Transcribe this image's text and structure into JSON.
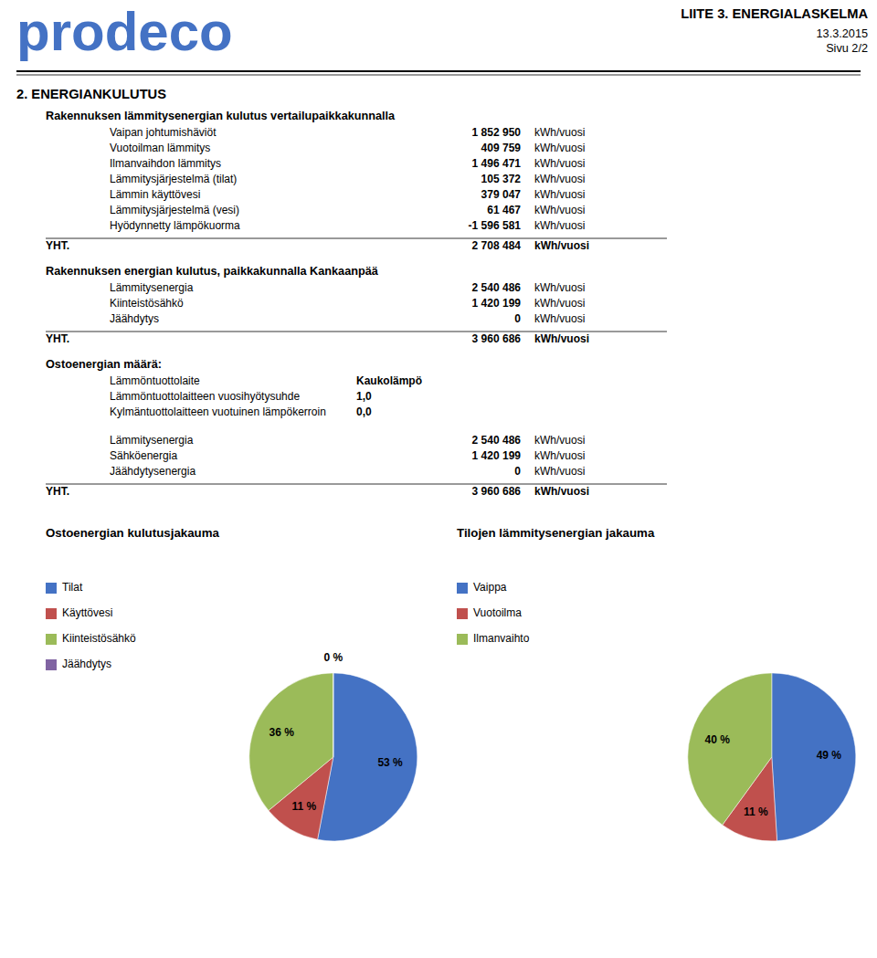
{
  "page": {
    "logo": "prodeco",
    "logo_color": "#4472C4",
    "header_title": "LIITE 3. ENERGIALASKELMA",
    "header_date": "13.3.2015",
    "header_page": "Sivu 2/2",
    "section_heading": "2. ENERGIANKULUTUS",
    "section1": {
      "title": "Rakennuksen lämmitysenergian kulutus vertailupaikkakunnalla",
      "rows": [
        {
          "label": "Vaipan johtumishäviöt",
          "value": "1 852 950",
          "unit": "kWh/vuosi"
        },
        {
          "label": "Vuotoilman lämmitys",
          "value": "409 759",
          "unit": "kWh/vuosi"
        },
        {
          "label": "Ilmanvaihdon lämmitys",
          "value": "1 496 471",
          "unit": "kWh/vuosi"
        },
        {
          "label": "Lämmitysjärjestelmä (tilat)",
          "value": "105 372",
          "unit": "kWh/vuosi"
        },
        {
          "label": "Lämmin käyttövesi",
          "value": "379 047",
          "unit": "kWh/vuosi"
        },
        {
          "label": "Lämmitysjärjestelmä (vesi)",
          "value": "61 467",
          "unit": "kWh/vuosi"
        },
        {
          "label": "Hyödynnetty lämpökuorma",
          "value": "-1 596 581",
          "unit": "kWh/vuosi"
        }
      ],
      "total": {
        "label": "YHT.",
        "value": "2 708 484",
        "unit": "kWh/vuosi"
      }
    },
    "section2": {
      "title": "Rakennuksen energian kulutus, paikkakunnalla Kankaanpää",
      "rows": [
        {
          "label": "Lämmitysenergia",
          "value": "2 540 486",
          "unit": "kWh/vuosi"
        },
        {
          "label": "Kiinteistösähkö",
          "value": "1 420 199",
          "unit": "kWh/vuosi"
        },
        {
          "label": "Jäähdytys",
          "value": "0",
          "unit": "kWh/vuosi"
        }
      ],
      "total": {
        "label": "YHT.",
        "value": "3 960 686",
        "unit": "kWh/vuosi"
      }
    },
    "section3": {
      "title": "Ostoenergian määrä:",
      "properties": [
        {
          "label": "Lämmöntuottolaite",
          "value": "Kaukolämpö"
        },
        {
          "label": "Lämmöntuottolaitteen vuosihyötysuhde",
          "value": "1,0"
        },
        {
          "label": "Kylmäntuottolaitteen vuotuinen lämpökerroin",
          "value": "0,0"
        }
      ],
      "rows": [
        {
          "label": "Lämmitysenergia",
          "value": "2 540 486",
          "unit": "kWh/vuosi"
        },
        {
          "label": "Sähköenergia",
          "value": "1 420 199",
          "unit": "kWh/vuosi"
        },
        {
          "label": "Jäähdytysenergia",
          "value": "0",
          "unit": "kWh/vuosi"
        }
      ],
      "total": {
        "label": "YHT.",
        "value": "3 960 686",
        "unit": "kWh/vuosi"
      }
    }
  },
  "chart_data": [
    {
      "type": "pie",
      "title": "Ostoenergian kulutusjakauma",
      "categories": [
        "Tilat",
        "Käyttövesi",
        "Kiinteistösähkö",
        "Jäähdytys"
      ],
      "values": [
        53,
        11,
        36,
        0.001
      ],
      "value_labels": [
        "53 %",
        "11 %",
        "36 %",
        "0 %"
      ],
      "colors": [
        "#4472C4",
        "#C0504D",
        "#9BBB59",
        "#8064A2"
      ],
      "data_labels": true,
      "legend": "left"
    },
    {
      "type": "pie",
      "title": "Tilojen lämmitysenergian jakauma",
      "categories": [
        "Vaippa",
        "Vuotoilma",
        "Ilmanvaihto"
      ],
      "values": [
        49,
        11,
        40
      ],
      "value_labels": [
        "49 %",
        "11 %",
        "40 %"
      ],
      "colors": [
        "#4472C4",
        "#C0504D",
        "#9BBB59"
      ],
      "data_labels": true,
      "legend": "left"
    }
  ]
}
